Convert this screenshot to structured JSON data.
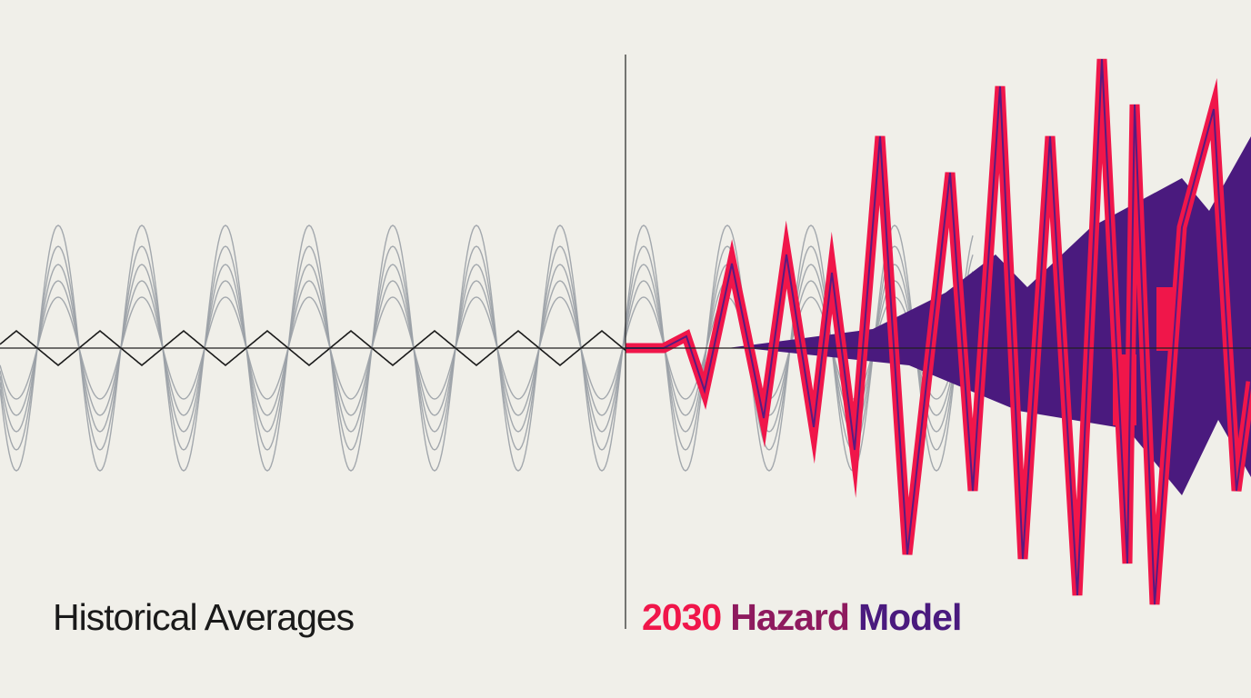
{
  "left_title": "Historical Averages",
  "right_title": [
    "2030",
    "Hazard",
    "Model"
  ]
}
